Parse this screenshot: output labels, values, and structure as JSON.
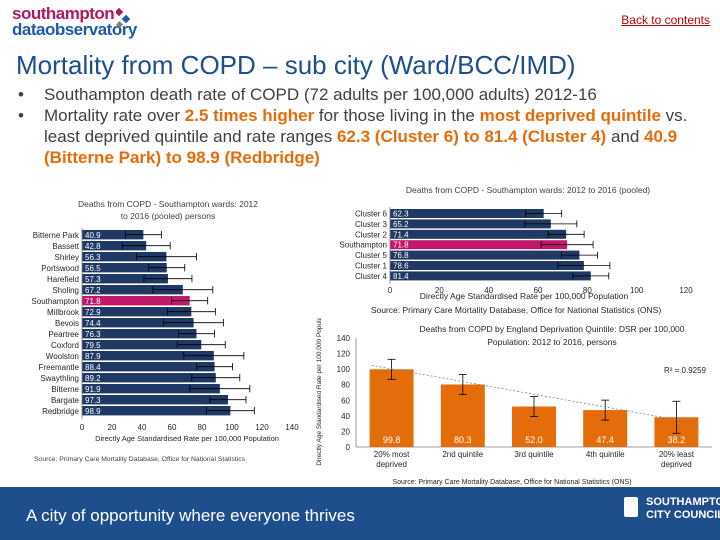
{
  "header": {
    "logo_line1": "southampton",
    "logo_line2": "dataobservatory",
    "back_link": "Back to contents"
  },
  "title": "Mortality from COPD – sub city (Ward/BCC/IMD)",
  "bullets": {
    "b1": "Southampton death rate of COPD (72 adults per 100,000 adults) 2012-16",
    "b2_pre": "Mortality rate over ",
    "b2_hl1": "2.5 times higher",
    "b2_mid": " for those living in the ",
    "b2_hl2": "most deprived quintile",
    "b2_post": " vs. least deprived quintile and rate ranges ",
    "b2_hl3": "62.3 (Cluster 6) to 81.4 (Cluster 4)",
    "b2_and": " and ",
    "b2_hl4": "40.9 (Bitterne Park) to 98.9 (Redbridge)"
  },
  "chart_data": [
    {
      "type": "bar",
      "orientation": "horizontal",
      "title": "Deaths from COPD - Southampton wards: 2012 to 2016 (pooled) persons",
      "categories": [
        "Bitterne Park",
        "Bassett",
        "Shirley",
        "Portswood",
        "Harefield",
        "Sholing",
        "Southampton",
        "Millbrook",
        "Bevois",
        "Peartree",
        "Coxford",
        "Woolston",
        "Freemantle",
        "Swaythling",
        "Bitterne",
        "Bargate",
        "Redbridge"
      ],
      "values": [
        40.9,
        42.8,
        56.3,
        56.5,
        57.3,
        67.2,
        71.8,
        72.9,
        74.4,
        76.3,
        79.5,
        87.9,
        88.4,
        89.2,
        91.9,
        97.3,
        98.9
      ],
      "labels": [
        "40.9",
        "42.8",
        "56.3",
        "56.5",
        "57.3",
        "67.2",
        "71.8",
        "72.9",
        "74.4",
        "76.3",
        "79.5",
        "87.9",
        "88.4",
        "89.2",
        "91.9",
        "97.3",
        "98.9"
      ],
      "highlight": "Southampton",
      "xlabel": "Directly Age Standardised Rate per 100,000 Population",
      "xlim": [
        0,
        140
      ],
      "xticks": [
        "0",
        "20",
        "40",
        "60",
        "80",
        "100",
        "120",
        "140"
      ],
      "source": "Source: Primary Care Mortality Database, Office for National Statistics"
    },
    {
      "type": "bar",
      "orientation": "horizontal",
      "title": "Deaths from COPD - Southampton wards: 2012 to 2016 (pooled)",
      "categories": [
        "Cluster 6",
        "Cluster 3",
        "Cluster 2",
        "Southampton",
        "Cluster 5",
        "Cluster 1",
        "Cluster 4"
      ],
      "values": [
        62.3,
        65.2,
        71.4,
        71.8,
        76.8,
        78.6,
        81.4
      ],
      "labels": [
        "62.3",
        "65.2",
        "71.4",
        "71.8",
        "76.8",
        "78.6",
        "81.4"
      ],
      "highlight": "Southampton",
      "xlabel": "Directly Age Standardised Rate per 100,000 Population",
      "xlim": [
        0,
        120
      ],
      "xticks": [
        "0",
        "20",
        "40",
        "60",
        "80",
        "100",
        "120"
      ],
      "source": "Source: Primary Care Mortality Database, Office for National Statistics (ONS)"
    },
    {
      "type": "bar",
      "orientation": "vertical",
      "title": "Deaths from COPD by England Deprivation Quintile: DSR per 100,000 Population: 2012 to 2016, persons",
      "categories": [
        "20% most deprived",
        "2nd quintile",
        "3rd quintile",
        "4th quintile",
        "20% least deprived"
      ],
      "values": [
        99.8,
        80.3,
        52.0,
        47.4,
        38.2
      ],
      "labels": [
        "99.8",
        "80.3",
        "52.0",
        "47.4",
        "38.2"
      ],
      "ylabel": "Directly Age Standardised Rate per 100,000 Population",
      "ylim": [
        0,
        140
      ],
      "yticks": [
        "0",
        "20",
        "40",
        "60",
        "80",
        "100",
        "120",
        "140"
      ],
      "r2": "R² = 0.9259",
      "source": "Source: Primary Care Mortality Database, Office for National Statistics (ONS)"
    }
  ],
  "colors": {
    "bar_blue": "#1f3864",
    "bar_highlight": "#c0196b",
    "bar_orange": "#e46c0a",
    "brand_blue": "#1f4e8c"
  },
  "footer": {
    "tagline": "A city of opportunity where everyone thrives",
    "org_line1": "SOUTHAMPTON",
    "org_line2": "CITY COUNCIL"
  }
}
